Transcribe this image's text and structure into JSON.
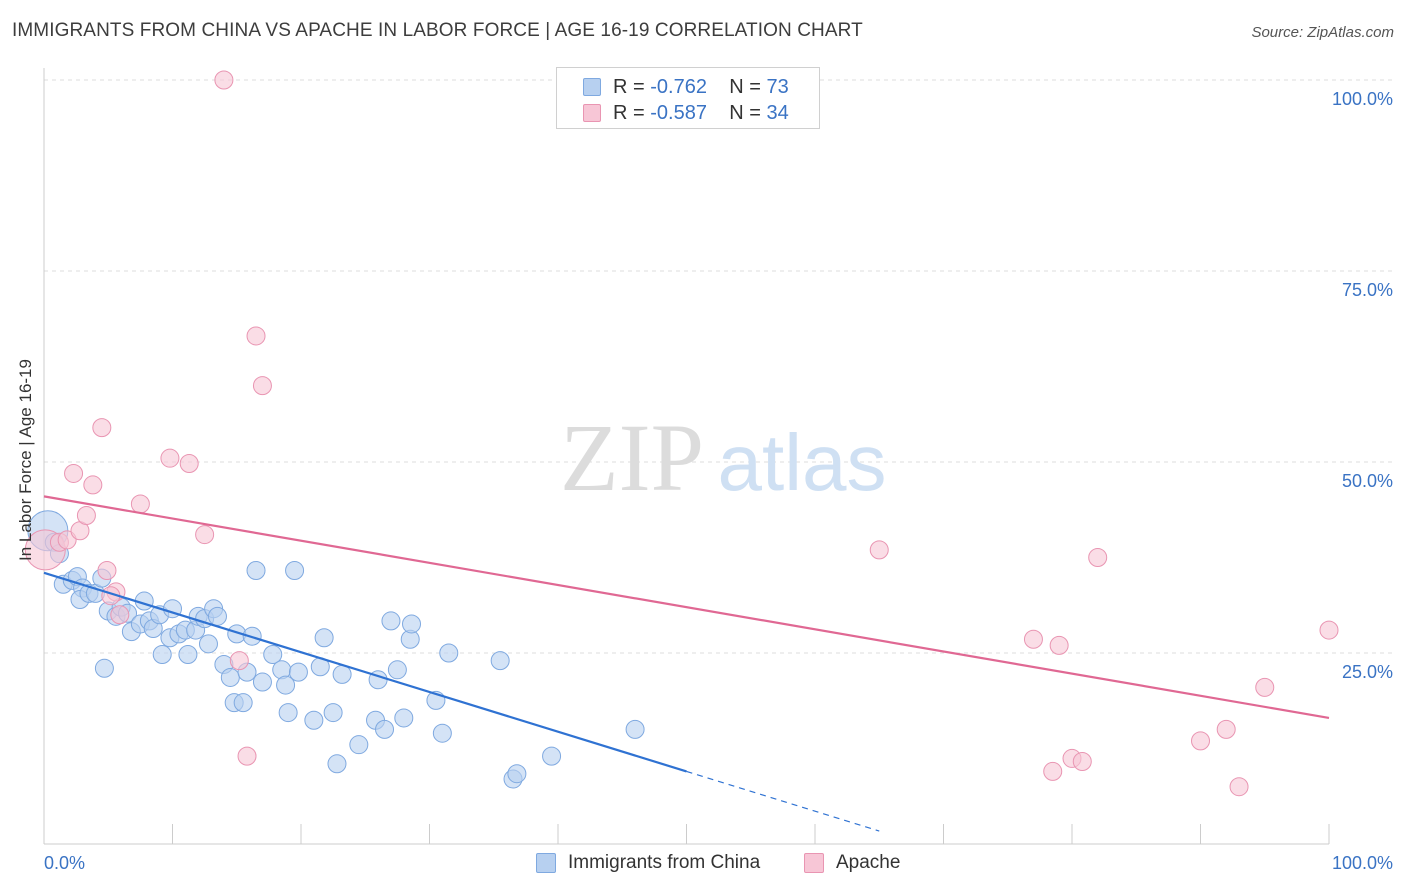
{
  "header": {
    "title": "IMMIGRANTS FROM CHINA VS APACHE IN LABOR FORCE | AGE 16-19 CORRELATION CHART",
    "source": "Source: ZipAtlas.com"
  },
  "watermark": {
    "zip": "ZIP",
    "atlas": "atlas"
  },
  "legend_stats": [
    {
      "r_label": "R = ",
      "r_value": "-0.762",
      "n_label": "N = ",
      "n_value": "73"
    },
    {
      "r_label": "R = ",
      "r_value": "-0.587",
      "n_label": "N = ",
      "n_value": "34"
    }
  ],
  "chart_data": {
    "type": "scatter",
    "title": "IMMIGRANTS FROM CHINA VS APACHE IN LABOR FORCE | AGE 16-19 CORRELATION CHART",
    "xlabel": "",
    "ylabel": "In Labor Force | Age 16-19",
    "xlim": [
      0,
      100
    ],
    "ylim": [
      0,
      100
    ],
    "x_tick_labels": [
      "0.0%",
      "100.0%"
    ],
    "y_tick_labels": [
      "25.0%",
      "50.0%",
      "75.0%",
      "100.0%"
    ],
    "y_ticks": [
      25,
      50,
      75,
      100
    ],
    "grid": true,
    "legend_position": "bottom-center",
    "series": [
      {
        "name": "Immigrants from China",
        "color": "#7fa9e0",
        "fill": "#b7d0f0",
        "line_color": "#2f72d2",
        "r": "-0.762",
        "n": "73",
        "trend": {
          "x0": 0,
          "y0": 35.5,
          "x1": 50,
          "y1": 9.5,
          "dash_to_x": 65
        },
        "points": [
          [
            0.3,
            41,
            3
          ],
          [
            0.8,
            39.5,
            1
          ],
          [
            1.2,
            38,
            1
          ],
          [
            1.5,
            34,
            1
          ],
          [
            2.2,
            34.5,
            1
          ],
          [
            2.6,
            35,
            1
          ],
          [
            3.0,
            33.5,
            1
          ],
          [
            2.8,
            32,
            1
          ],
          [
            3.5,
            32.8,
            1
          ],
          [
            4,
            32.8,
            1
          ],
          [
            4.5,
            34.8,
            1
          ],
          [
            4.7,
            23,
            1
          ],
          [
            5,
            30.5,
            1
          ],
          [
            5.6,
            29.8,
            1
          ],
          [
            6,
            31,
            1
          ],
          [
            6.5,
            30.2,
            1
          ],
          [
            6.8,
            27.8,
            1
          ],
          [
            7.5,
            28.8,
            1
          ],
          [
            7.8,
            31.8,
            1
          ],
          [
            8.2,
            29.2,
            1
          ],
          [
            8.5,
            28.2,
            1
          ],
          [
            9,
            30,
            1
          ],
          [
            9.2,
            24.8,
            1
          ],
          [
            9.8,
            27,
            1
          ],
          [
            10,
            30.8,
            1
          ],
          [
            10.5,
            27.5,
            1
          ],
          [
            11,
            28,
            1
          ],
          [
            11.2,
            24.8,
            1
          ],
          [
            11.8,
            28,
            1
          ],
          [
            12,
            29.8,
            1
          ],
          [
            12.5,
            29.5,
            1
          ],
          [
            12.8,
            26.2,
            1
          ],
          [
            13.2,
            30.8,
            1
          ],
          [
            13.5,
            29.8,
            1
          ],
          [
            14,
            23.5,
            1
          ],
          [
            14.5,
            21.8,
            1
          ],
          [
            14.8,
            18.5,
            1
          ],
          [
            15,
            27.5,
            1
          ],
          [
            15.5,
            18.5,
            1
          ],
          [
            15.8,
            22.5,
            1
          ],
          [
            16.2,
            27.2,
            1
          ],
          [
            16.5,
            35.8,
            1
          ],
          [
            17,
            21.2,
            1
          ],
          [
            17.8,
            24.8,
            1
          ],
          [
            18.5,
            22.8,
            1
          ],
          [
            18.8,
            20.8,
            1
          ],
          [
            19,
            17.2,
            1
          ],
          [
            19.5,
            35.8,
            1
          ],
          [
            19.8,
            22.5,
            1
          ],
          [
            21,
            16.2,
            1
          ],
          [
            21.5,
            23.2,
            1
          ],
          [
            21.8,
            27,
            1
          ],
          [
            22.5,
            17.2,
            1
          ],
          [
            22.8,
            10.5,
            1
          ],
          [
            23.2,
            22.2,
            1
          ],
          [
            24.5,
            13,
            1
          ],
          [
            25.8,
            16.2,
            1
          ],
          [
            26,
            21.5,
            1
          ],
          [
            26.5,
            15,
            1
          ],
          [
            27,
            29.2,
            1
          ],
          [
            27.5,
            22.8,
            1
          ],
          [
            28,
            16.5,
            1
          ],
          [
            28.5,
            26.8,
            1
          ],
          [
            28.6,
            28.8,
            1
          ],
          [
            30.5,
            18.8,
            1
          ],
          [
            31,
            14.5,
            1
          ],
          [
            31.5,
            25,
            1
          ],
          [
            35.5,
            24,
            1
          ],
          [
            36.5,
            8.5,
            1
          ],
          [
            36.8,
            9.2,
            1
          ],
          [
            39.5,
            11.5,
            1
          ],
          [
            46,
            15,
            1
          ]
        ]
      },
      {
        "name": "Apache",
        "color": "#e995b2",
        "fill": "#f7c6d6",
        "line_color": "#e06893",
        "r": "-0.587",
        "n": "34",
        "trend": {
          "x0": 0,
          "y0": 45.5,
          "x1": 100,
          "y1": 16.5
        },
        "points": [
          [
            0.1,
            38.5,
            3
          ],
          [
            1.2,
            39.5,
            1
          ],
          [
            1.8,
            39.8,
            1
          ],
          [
            2.3,
            48.5,
            1
          ],
          [
            2.8,
            41,
            1
          ],
          [
            3.3,
            43,
            1
          ],
          [
            3.8,
            47,
            1
          ],
          [
            4.5,
            54.5,
            1
          ],
          [
            4.9,
            35.8,
            1
          ],
          [
            5.6,
            33,
            1
          ],
          [
            5.2,
            32.5,
            1
          ],
          [
            5.9,
            30,
            1
          ],
          [
            7.5,
            44.5,
            1
          ],
          [
            9.8,
            50.5,
            1
          ],
          [
            11.3,
            49.8,
            1
          ],
          [
            12.5,
            40.5,
            1
          ],
          [
            14,
            100,
            1
          ],
          [
            15.2,
            24,
            1
          ],
          [
            15.8,
            11.5,
            1
          ],
          [
            16.5,
            66.5,
            1
          ],
          [
            17,
            60,
            1
          ],
          [
            65,
            38.5,
            1
          ],
          [
            77,
            26.8,
            1
          ],
          [
            78.5,
            9.5,
            1
          ],
          [
            79,
            26,
            1
          ],
          [
            80,
            11.2,
            1
          ],
          [
            80.8,
            10.8,
            1
          ],
          [
            82,
            37.5,
            1
          ],
          [
            90,
            13.5,
            1
          ],
          [
            92,
            15,
            1
          ],
          [
            93,
            7.5,
            1
          ],
          [
            95,
            20.5,
            1
          ],
          [
            100,
            28,
            1
          ]
        ]
      }
    ]
  }
}
